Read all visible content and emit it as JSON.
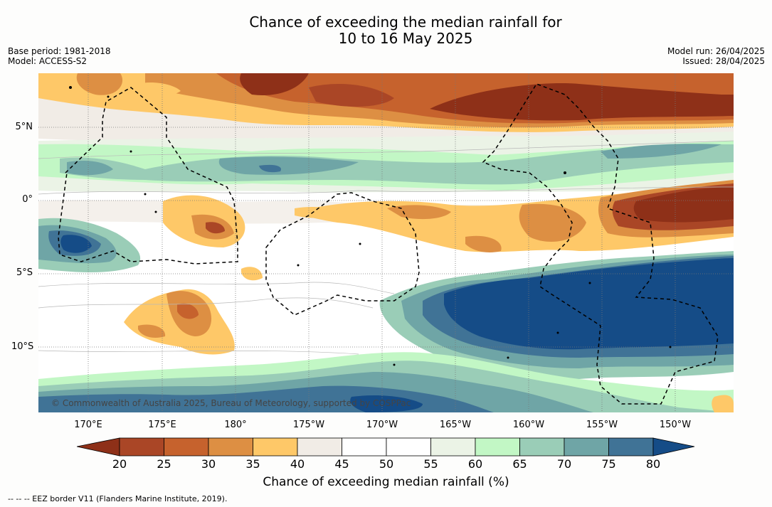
{
  "title_line1": "Chance of exceeding the median rainfall for",
  "title_line2": "10 to 16 May 2025",
  "meta_left": {
    "base_period": "Base period: 1981-2018",
    "model": "Model: ACCESS-S2"
  },
  "meta_right": {
    "model_run": "Model run: 26/04/2025",
    "issued": "Issued: 28/04/2025"
  },
  "lat_labels": [
    "5°N",
    "0°",
    "5°S",
    "10°S"
  ],
  "lon_labels": [
    "170°E",
    "175°E",
    "180°",
    "175°W",
    "170°W",
    "165°W",
    "160°W",
    "155°W",
    "150°W"
  ],
  "copyright": "© Commonwealth of Australia 2025, Bureau of Meteorology, supported by COSPPac",
  "colorbar": {
    "ticks": [
      "20",
      "25",
      "30",
      "35",
      "40",
      "45",
      "50",
      "55",
      "60",
      "65",
      "70",
      "75",
      "80"
    ],
    "colors": [
      "#8e3018",
      "#aa4626",
      "#c6622d",
      "#dd8f43",
      "#fec868",
      "#f1ece6",
      "#ffffff",
      "#ffffff",
      "#ebf3e6",
      "#c2f7c5",
      "#9acdb7",
      "#6fa5a6",
      "#407396",
      "#154c87"
    ],
    "label": "Chance of exceeding median rainfall (%)"
  },
  "footer": "--  --  -- EEZ border V11 (Flanders Marine Institute, 2019).",
  "map_data": {
    "lon_range": [
      "167°E",
      "144°W"
    ],
    "lat_range": [
      "8.5°N",
      "14.5°S"
    ],
    "regions": [
      {
        "name": "northern-dry-band",
        "value_range": "20-40"
      },
      {
        "name": "central-north-wet-band",
        "value_range": "60-75"
      },
      {
        "name": "equatorial-east-dry-band",
        "value_range": "20-40"
      },
      {
        "name": "southeast-wet-region",
        "value_range": "75-80+"
      },
      {
        "name": "west-wet-pocket",
        "value_range": "70-80"
      },
      {
        "name": "southwest-dry-pocket",
        "value_range": "25-40"
      },
      {
        "name": "southern-wet-band",
        "value_range": "65-80"
      }
    ]
  }
}
